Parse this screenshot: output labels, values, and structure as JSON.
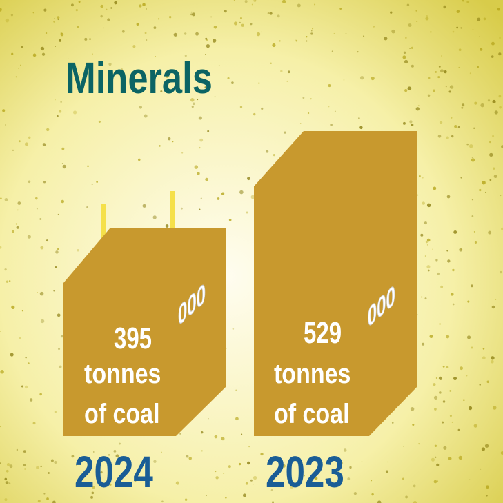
{
  "title": "Minerals",
  "items": [
    {
      "number": "395",
      "number_rest": "000",
      "unit_line1": "tonnes",
      "unit_line2": "of coal",
      "year": "2024"
    },
    {
      "number": "529",
      "number_rest": "000",
      "unit_line1": "tonnes",
      "unit_line2": "of coal",
      "year": "2023"
    }
  ]
}
